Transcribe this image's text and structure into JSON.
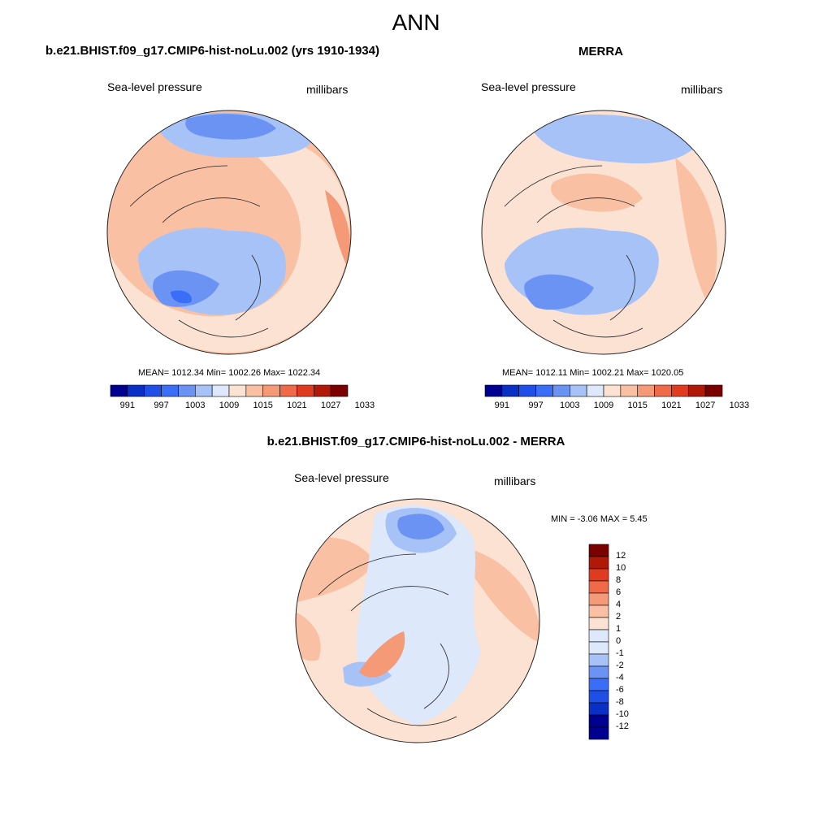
{
  "title": "ANN",
  "palette": [
    "#000090",
    "#0a2fc4",
    "#1f4fe6",
    "#3b6ef7",
    "#6b93f4",
    "#a7c2f7",
    "#dde8fb",
    "#fbe2d2",
    "#f9c0a4",
    "#f59a77",
    "#ef6a48",
    "#e03b20",
    "#b01808",
    "#7a0000"
  ],
  "panels": [
    {
      "title": "b.e21.BHIST.f09_g17.CMIP6-hist-noLu.002 (yrs 1910-1934)",
      "variable": "Sea-level pressure",
      "units": "millibars",
      "stats": "MEAN= 1012.34  Min= 1002.26  Max= 1022.34",
      "colorbar_ticks": [
        "991",
        "997",
        "1003",
        "1009",
        "1015",
        "1021",
        "1027",
        "1033"
      ]
    },
    {
      "title": "MERRA",
      "variable": "Sea-level pressure",
      "units": "millibars",
      "stats": "MEAN= 1012.11  Min= 1002.21  Max= 1020.05",
      "colorbar_ticks": [
        "991",
        "997",
        "1003",
        "1009",
        "1015",
        "1021",
        "1027",
        "1033"
      ]
    },
    {
      "title": "b.e21.BHIST.f09_g17.CMIP6-hist-noLu.002 - MERRA",
      "variable": "Sea-level pressure",
      "units": "millibars",
      "stats": "MIN =  -3.06 MAX =   5.45",
      "colorbar_ticks": [
        "12",
        "10",
        "8",
        "6",
        "4",
        "2",
        "1",
        "0",
        "-1",
        "-2",
        "-4",
        "-6",
        "-8",
        "-10",
        "-12"
      ]
    }
  ]
}
